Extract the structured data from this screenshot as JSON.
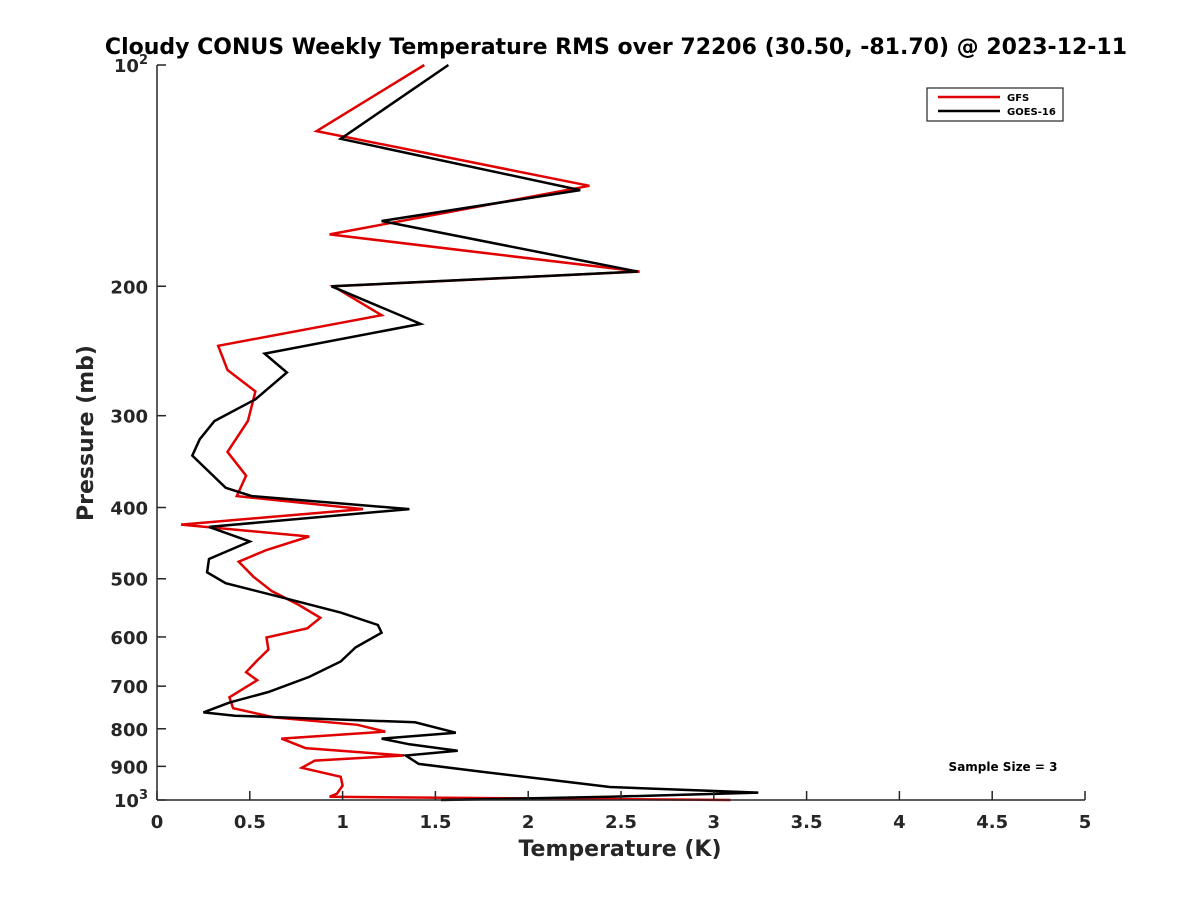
{
  "chart_data": {
    "type": "line",
    "title": "Cloudy CONUS Weekly Temperature RMS over 72206 (30.50, -81.70) @ 2023-12-11",
    "xlabel": "Temperature (K)",
    "ylabel": "Pressure (mb)",
    "xlim": [
      0,
      5
    ],
    "ylim": [
      100,
      1000
    ],
    "yscale": "log",
    "y_reversed": true,
    "grid": false,
    "legend_position": "top-right",
    "xticks": [
      {
        "value": 0,
        "label": "0"
      },
      {
        "value": 0.5,
        "label": "0.5"
      },
      {
        "value": 1,
        "label": "1"
      },
      {
        "value": 1.5,
        "label": "1.5"
      },
      {
        "value": 2,
        "label": "2"
      },
      {
        "value": 2.5,
        "label": "2.5"
      },
      {
        "value": 3,
        "label": "3"
      },
      {
        "value": 3.5,
        "label": "3.5"
      },
      {
        "value": 4,
        "label": "4"
      },
      {
        "value": 4.5,
        "label": "4.5"
      },
      {
        "value": 5,
        "label": "5"
      }
    ],
    "yticks": [
      {
        "value": 100,
        "base": "10",
        "exp": "2"
      },
      {
        "value": 200,
        "label": "200"
      },
      {
        "value": 300,
        "label": "300"
      },
      {
        "value": 400,
        "label": "400"
      },
      {
        "value": 500,
        "label": "500"
      },
      {
        "value": 600,
        "label": "600"
      },
      {
        "value": 700,
        "label": "700"
      },
      {
        "value": 800,
        "label": "800"
      },
      {
        "value": 900,
        "label": "900"
      },
      {
        "value": 1000,
        "base": "10",
        "exp": "3"
      }
    ],
    "series": [
      {
        "name": "GFS",
        "color": "#e00000",
        "points": [
          [
            1.44,
            100
          ],
          [
            0.86,
            123
          ],
          [
            2.33,
            146
          ],
          [
            0.93,
            170
          ],
          [
            2.6,
            191
          ],
          [
            0.95,
            200
          ],
          [
            1.21,
            219
          ],
          [
            0.33,
            241
          ],
          [
            0.38,
            260
          ],
          [
            0.53,
            278
          ],
          [
            0.49,
            305
          ],
          [
            0.38,
            336
          ],
          [
            0.48,
            362
          ],
          [
            0.43,
            386
          ],
          [
            1.11,
            402
          ],
          [
            0.13,
            422
          ],
          [
            0.82,
            438
          ],
          [
            0.59,
            457
          ],
          [
            0.44,
            474
          ],
          [
            0.52,
            497
          ],
          [
            0.62,
            520
          ],
          [
            0.76,
            542
          ],
          [
            0.88,
            565
          ],
          [
            0.81,
            584
          ],
          [
            0.59,
            601
          ],
          [
            0.6,
            624
          ],
          [
            0.54,
            646
          ],
          [
            0.48,
            670
          ],
          [
            0.54,
            687
          ],
          [
            0.39,
            725
          ],
          [
            0.41,
            750
          ],
          [
            0.63,
            772
          ],
          [
            1.08,
            790
          ],
          [
            1.23,
            807
          ],
          [
            0.67,
            825
          ],
          [
            0.8,
            850
          ],
          [
            1.33,
            870
          ],
          [
            0.85,
            884
          ],
          [
            0.78,
            904
          ],
          [
            0.99,
            930
          ],
          [
            1.0,
            956
          ],
          [
            0.97,
            980
          ],
          [
            0.93,
            990
          ],
          [
            3.09,
            1000
          ]
        ]
      },
      {
        "name": "GOES-16",
        "color": "#000000",
        "points": [
          [
            1.57,
            100
          ],
          [
            0.99,
            126
          ],
          [
            2.28,
            148
          ],
          [
            1.21,
            163
          ],
          [
            2.59,
            191
          ],
          [
            0.94,
            200
          ],
          [
            1.42,
            225
          ],
          [
            0.58,
            247
          ],
          [
            0.7,
            262
          ],
          [
            0.53,
            285
          ],
          [
            0.31,
            305
          ],
          [
            0.23,
            323
          ],
          [
            0.19,
            340
          ],
          [
            0.37,
            376
          ],
          [
            0.51,
            386
          ],
          [
            1.36,
            402
          ],
          [
            0.28,
            425
          ],
          [
            0.5,
            445
          ],
          [
            0.28,
            470
          ],
          [
            0.27,
            490
          ],
          [
            0.37,
            507
          ],
          [
            0.67,
            530
          ],
          [
            0.99,
            556
          ],
          [
            1.19,
            578
          ],
          [
            1.21,
            592
          ],
          [
            1.07,
            620
          ],
          [
            0.99,
            648
          ],
          [
            0.82,
            680
          ],
          [
            0.6,
            713
          ],
          [
            0.39,
            737
          ],
          [
            0.25,
            760
          ],
          [
            0.42,
            768
          ],
          [
            1.39,
            784
          ],
          [
            1.61,
            810
          ],
          [
            1.21,
            825
          ],
          [
            1.36,
            840
          ],
          [
            1.62,
            857
          ],
          [
            1.34,
            870
          ],
          [
            1.41,
            893
          ],
          [
            1.76,
            916
          ],
          [
            2.11,
            938
          ],
          [
            2.44,
            960
          ],
          [
            3.24,
            977
          ],
          [
            2.44,
            990
          ],
          [
            1.53,
            1000
          ]
        ]
      }
    ],
    "annotation": "Sample Size = 3"
  }
}
